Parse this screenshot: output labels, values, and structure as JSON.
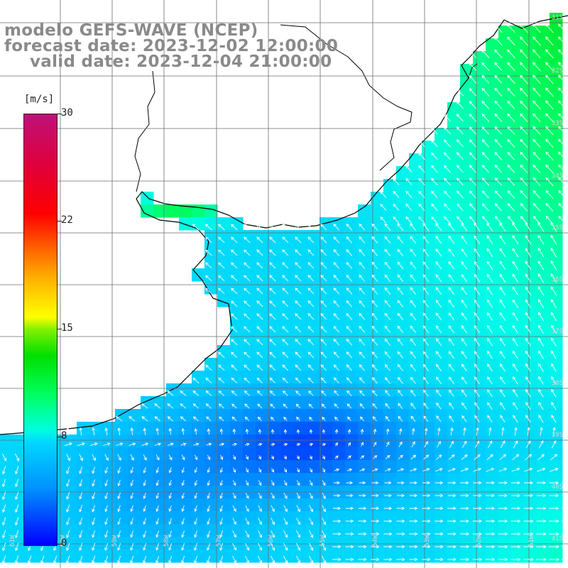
{
  "title": {
    "line1": "modelo GEFS-WAVE (NCEP)",
    "line2": "forecast date: 2023-12-02 12:00:00",
    "line3": "valid date: 2023-12-04 21:00:00"
  },
  "colorbar": {
    "unit": "[m/s]",
    "ticks": [
      "30",
      "22",
      "15",
      "8",
      "0"
    ],
    "range": [
      0,
      30
    ],
    "colors": [
      "#0000ff",
      "#0090ff",
      "#00ffdc",
      "#00e000",
      "#ffff00",
      "#ff6000",
      "#ff0000",
      "#c0107a"
    ]
  },
  "lat_labels": [
    "31S",
    "32S",
    "33S",
    "34S",
    "35S",
    "36S",
    "37S",
    "38S",
    "39S",
    "40S",
    "41S"
  ],
  "lon_labels": [
    "61W",
    "60W",
    "59W",
    "58W",
    "57W",
    "56W",
    "55W",
    "54W",
    "53W",
    "52W",
    "51W"
  ],
  "field": "wind speed with direction arrows",
  "colors": {
    "land": "#ffffff",
    "coast": "#000000",
    "grid": "#6e6e6e",
    "arrow": "#ffffff",
    "title": "#8a8a8a"
  }
}
